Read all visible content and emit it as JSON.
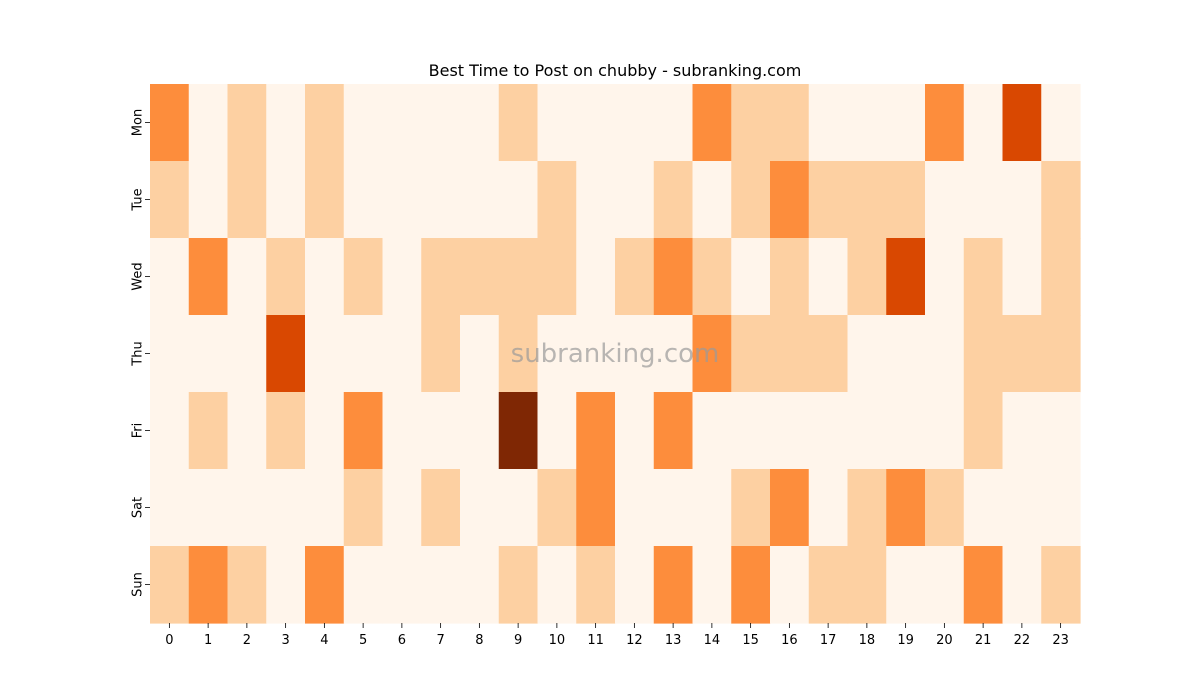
{
  "chart_data": {
    "type": "heatmap",
    "title": "Best Time to Post on chubby - subranking.com",
    "watermark": "subranking.com",
    "xlabel": "",
    "ylabel": "",
    "x": [
      "0",
      "1",
      "2",
      "3",
      "4",
      "5",
      "6",
      "7",
      "8",
      "9",
      "10",
      "11",
      "12",
      "13",
      "14",
      "15",
      "16",
      "17",
      "18",
      "19",
      "20",
      "21",
      "22",
      "23"
    ],
    "y": [
      "Mon",
      "Tue",
      "Wed",
      "Thu",
      "Fri",
      "Sat",
      "Sun"
    ],
    "values": [
      [
        2,
        0,
        1,
        0,
        1,
        0,
        0,
        0,
        0,
        1,
        0,
        0,
        0,
        0,
        2,
        1,
        1,
        0,
        0,
        0,
        2,
        0,
        3,
        0
      ],
      [
        1,
        0,
        1,
        0,
        1,
        0,
        0,
        0,
        0,
        0,
        1,
        0,
        0,
        1,
        0,
        1,
        2,
        1,
        1,
        1,
        0,
        0,
        0,
        1
      ],
      [
        0,
        2,
        0,
        1,
        0,
        1,
        0,
        1,
        1,
        1,
        1,
        0,
        1,
        2,
        1,
        0,
        1,
        0,
        1,
        3,
        0,
        1,
        0,
        1
      ],
      [
        0,
        0,
        0,
        3,
        0,
        0,
        0,
        1,
        0,
        1,
        0,
        0,
        0,
        0,
        2,
        1,
        1,
        1,
        0,
        0,
        0,
        1,
        1,
        1
      ],
      [
        0,
        1,
        0,
        1,
        0,
        2,
        0,
        0,
        0,
        4,
        0,
        2,
        0,
        2,
        0,
        0,
        0,
        0,
        0,
        0,
        0,
        1,
        0,
        0
      ],
      [
        0,
        0,
        0,
        0,
        0,
        1,
        0,
        1,
        0,
        0,
        1,
        2,
        0,
        0,
        0,
        1,
        2,
        0,
        1,
        2,
        1,
        0,
        0,
        0
      ],
      [
        1,
        2,
        1,
        0,
        2,
        0,
        0,
        0,
        0,
        1,
        0,
        1,
        0,
        2,
        0,
        2,
        0,
        1,
        1,
        0,
        0,
        2,
        0,
        1
      ]
    ],
    "value_range": [
      0,
      4
    ],
    "colormap": [
      "#fff5eb",
      "#fdd0a2",
      "#fd8d3c",
      "#d94801",
      "#7f2704"
    ]
  }
}
